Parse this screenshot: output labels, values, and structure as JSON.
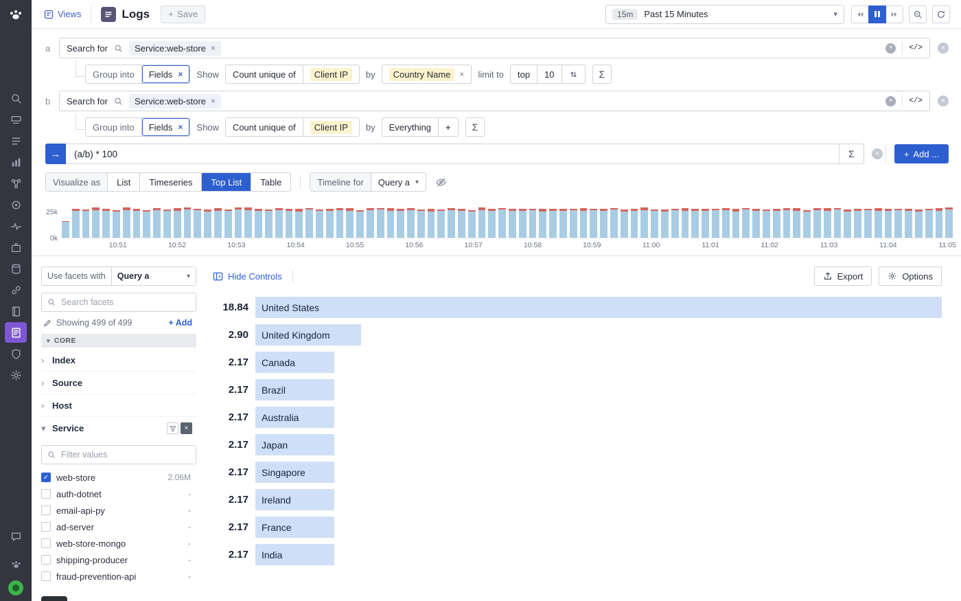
{
  "colors": {
    "accent_blue": "#2d5fd0",
    "link_blue": "#3f62c9",
    "chip_yellow": "#fbf3cd",
    "timeline_bar": "#a9cce5",
    "timeline_cap": "#d4645c",
    "toplist_bar": "#cfdff7"
  },
  "rail": {
    "items": [
      {
        "icon": "search",
        "name": "search-icon"
      },
      {
        "icon": "infrastructure",
        "name": "infrastructure-icon"
      },
      {
        "icon": "events",
        "name": "events-icon"
      },
      {
        "icon": "metrics",
        "name": "metrics-icon"
      },
      {
        "icon": "apm",
        "name": "apm-icon"
      },
      {
        "icon": "synthetics",
        "name": "synthetics-icon"
      },
      {
        "icon": "watchdog",
        "name": "watchdog-icon"
      },
      {
        "icon": "integrations",
        "name": "integrations-icon"
      },
      {
        "icon": "database",
        "name": "database-icon"
      },
      {
        "icon": "pipelines",
        "name": "pipelines-icon"
      },
      {
        "icon": "notebooks",
        "name": "notebooks-icon"
      },
      {
        "icon": "logs",
        "name": "logs-icon",
        "active": true
      },
      {
        "icon": "security",
        "name": "security-icon"
      },
      {
        "icon": "settings",
        "name": "settings-icon"
      }
    ]
  },
  "topbar": {
    "views_label": "Views",
    "title": "Logs",
    "save_label": "Save",
    "time_range_badge": "15m",
    "time_range_label": "Past 15 Minutes"
  },
  "queries": [
    {
      "letter": "a",
      "search_label": "Search for",
      "filter_token": "Service:web-store",
      "group": {
        "group_into_label": "Group into",
        "group_value": "Fields",
        "show_label": "Show",
        "measure_label": "Count unique of",
        "measure_value": "Client IP",
        "by_label": "by",
        "by_value": "Country Name",
        "limit_label": "limit to",
        "limit_order": "top",
        "limit_count": "10"
      }
    },
    {
      "letter": "b",
      "search_label": "Search for",
      "filter_token": "Service:web-store",
      "group": {
        "group_into_label": "Group into",
        "group_value": "Fields",
        "show_label": "Show",
        "measure_label": "Count unique of",
        "measure_value": "Client IP",
        "by_label": "by",
        "by_value": "Everything"
      }
    }
  ],
  "formula": {
    "expression": "(a/b) * 100",
    "add_label": "Add ..."
  },
  "viz": {
    "visualize_as_label": "Visualize as",
    "options": [
      "List",
      "Timeseries",
      "Top List",
      "Table"
    ],
    "active_option": "Top List",
    "timeline_for_label": "Timeline for",
    "timeline_query_value": "Query a"
  },
  "facet_panel": {
    "use_facets_label": "Use facets with",
    "query_select_value": "Query a",
    "search_placeholder": "Search facets",
    "edit_summary": "Showing 499 of 499",
    "add_label": "Add",
    "section_label": "CORE",
    "groups": [
      {
        "label": "Index"
      },
      {
        "label": "Source"
      },
      {
        "label": "Host"
      },
      {
        "label": "Service"
      }
    ],
    "filter_placeholder": "Filter values",
    "values": [
      {
        "label": "web-store",
        "checked": true,
        "count": "2.06M"
      },
      {
        "label": "auth-dotnet",
        "checked": false,
        "count": "-"
      },
      {
        "label": "email-api-py",
        "checked": false,
        "count": "-"
      },
      {
        "label": "ad-server",
        "checked": false,
        "count": "-"
      },
      {
        "label": "web-store-mongo",
        "checked": false,
        "count": "-"
      },
      {
        "label": "shipping-producer",
        "checked": false,
        "count": "-"
      },
      {
        "label": "fraud-prevention-api",
        "checked": false,
        "count": "-"
      }
    ]
  },
  "content_controls": {
    "hide_controls_label": "Hide Controls",
    "export_label": "Export",
    "options_label": "Options"
  },
  "chart_data": [
    {
      "type": "bar",
      "title": "Log volume timeline",
      "ylim": [
        0,
        25000
      ],
      "y_tick_labels": [
        "25k",
        "0k"
      ],
      "x_tick_labels": [
        "10:51",
        "10:52",
        "10:53",
        "10:54",
        "10:55",
        "10:56",
        "10:57",
        "10:58",
        "10:59",
        "11:00",
        "11:01",
        "11:02",
        "11:03",
        "11:04",
        "11:05"
      ],
      "legend": "off",
      "series": [
        {
          "name": "base",
          "color": "#a9cce5",
          "values": [
            12800,
            22400,
            21900,
            22600,
            22100,
            21700,
            22900,
            22300,
            21600,
            22800,
            22200,
            21900,
            23100,
            22500,
            21800,
            22400,
            22000,
            23200,
            22600,
            21900,
            22300,
            22800,
            22100,
            21700,
            23300,
            22400,
            21900,
            22700,
            22200,
            21800,
            22500,
            23100,
            21900,
            22300,
            22800,
            22000,
            21700,
            22400,
            22900,
            22200,
            21800,
            22600,
            22100,
            23200,
            21900,
            22400,
            22800,
            21700,
            22300,
            22000,
            22700,
            21900,
            22500,
            22100,
            23100,
            21800,
            22400,
            22900,
            22200,
            21700,
            22600,
            22000,
            22300,
            21900,
            22800,
            22500,
            21800,
            23200,
            22100,
            22400,
            21900,
            22700,
            22200,
            21700,
            22500,
            22000,
            23100,
            21800,
            22300,
            22900,
            22100,
            21900,
            22600,
            22400,
            21700,
            22800,
            22200,
            23300
          ]
        },
        {
          "name": "cap",
          "color": "#d4645c",
          "values": [
            600,
            1800,
            1300,
            2100,
            1600,
            1200,
            2300,
            1700,
            1100,
            1900,
            1400,
            2000,
            1600,
            1200,
            1800,
            2200,
            1300,
            1700,
            2100,
            1500,
            1200,
            1900,
            1600,
            2300,
            1400,
            1100,
            1800,
            1500,
            2000,
            1300,
            1700,
            1200,
            2100,
            1600,
            1900,
            1400,
            2200,
            1300,
            1800,
            1500,
            1100,
            2000,
            1600,
            1300,
            1900,
            1700,
            1200,
            2100,
            1500,
            1800,
            1400,
            2300,
            1300,
            1700,
            1100,
            1900,
            1600,
            2000,
            1400,
            1800,
            1200,
            2100,
            1500,
            1700,
            1300,
            1900,
            2200,
            1400,
            1600,
            1100,
            1800,
            1500,
            2000,
            1300,
            1700,
            2100,
            1200,
            1600,
            1900,
            1400,
            2300,
            1500,
            1300,
            1800,
            1600,
            1100,
            2000,
            1700
          ]
        }
      ]
    },
    {
      "type": "bar",
      "orientation": "horizontal",
      "title": "Top List — count unique Client IP by Country Name",
      "categories": [
        "United States",
        "United Kingdom",
        "Canada",
        "Brazil",
        "Australia",
        "Japan",
        "Singapore",
        "Ireland",
        "France",
        "India"
      ],
      "values": [
        18.84,
        2.9,
        2.17,
        2.17,
        2.17,
        2.17,
        2.17,
        2.17,
        2.17,
        2.17
      ],
      "value_labels": [
        "18.84",
        "2.90",
        "2.17",
        "2.17",
        "2.17",
        "2.17",
        "2.17",
        "2.17",
        "2.17",
        "2.17"
      ],
      "bar_color": "#cfdff7"
    }
  ]
}
